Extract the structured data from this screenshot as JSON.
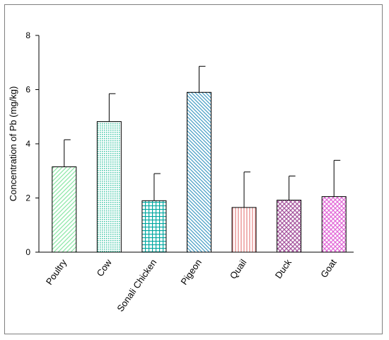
{
  "chart_data": {
    "type": "bar",
    "title": "",
    "xlabel": "",
    "ylabel": "Concentration of Pb (mg/kg)",
    "ylim": [
      0,
      8
    ],
    "yticks": [
      0,
      2,
      4,
      6,
      8
    ],
    "categories": [
      "Poultry",
      "Cow",
      "Sonali Chicken",
      "Pigeon",
      "Quail",
      "Duck",
      "Goat"
    ],
    "values": [
      3.15,
      4.82,
      1.9,
      5.9,
      1.65,
      1.92,
      2.05
    ],
    "errors": [
      1.0,
      1.03,
      1.0,
      0.96,
      1.31,
      0.89,
      1.34
    ],
    "colors": [
      "#8ee8a8",
      "#3fc6a6",
      "#00a7a0",
      "#4b9fc6",
      "#e88a8a",
      "#a6559e",
      "#e26ad8"
    ],
    "patterns": [
      "diagonal-up",
      "dots",
      "grid",
      "diagonal-down",
      "vertical",
      "crosshatch",
      "crosshatch"
    ],
    "grid": false,
    "legend": "none",
    "error_bars": true
  }
}
